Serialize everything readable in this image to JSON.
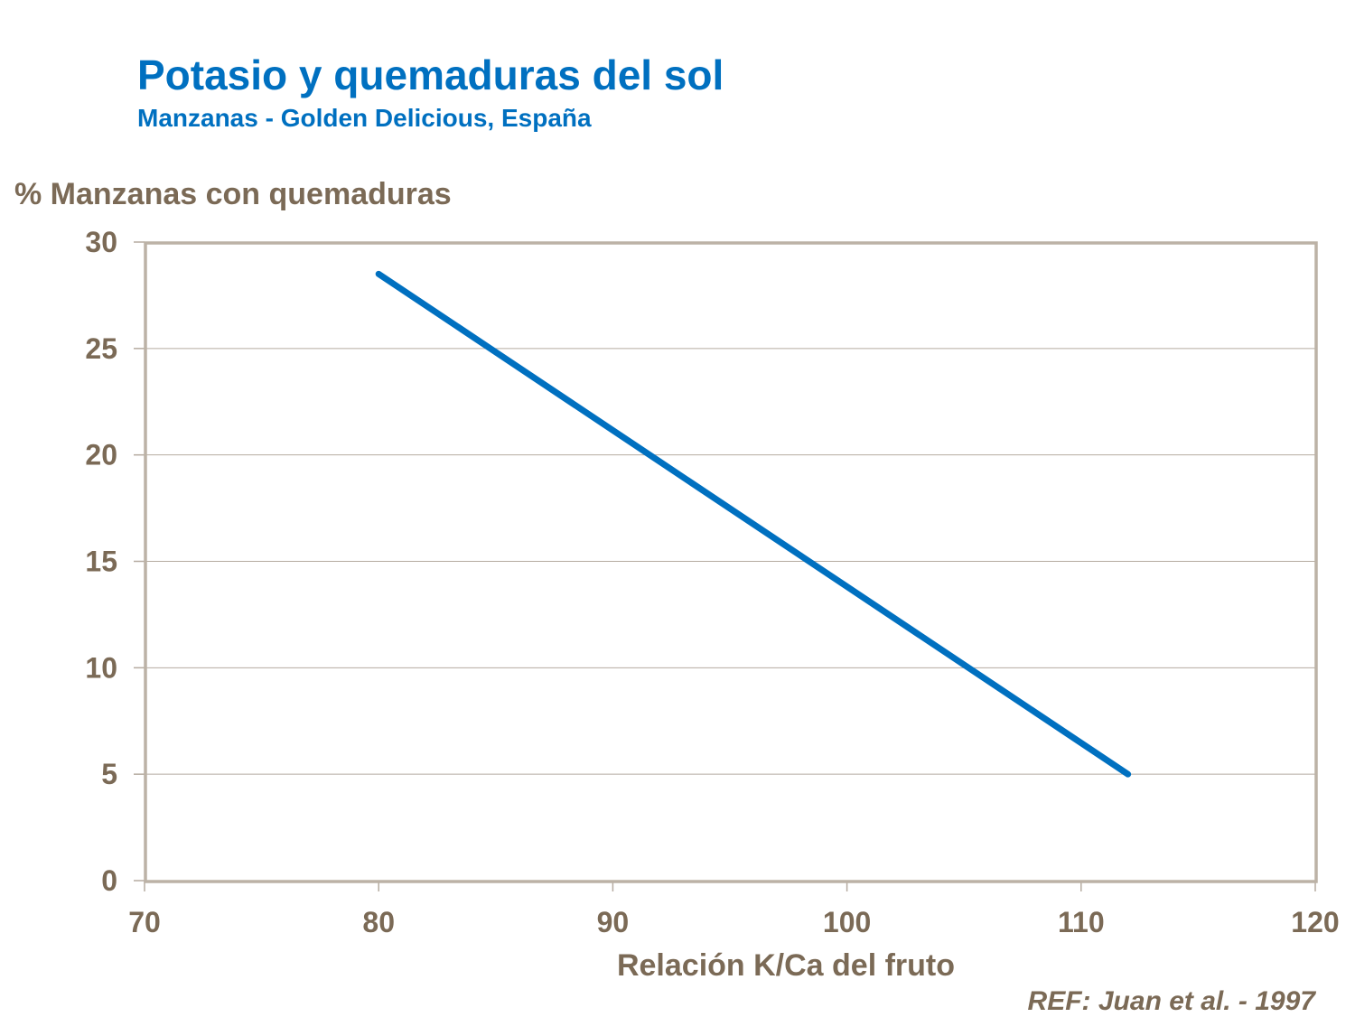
{
  "chart_data": {
    "type": "line",
    "title": "Potasio y quemaduras del sol",
    "subtitle": "Manzanas - Golden Delicious, España",
    "xlabel": "Relación K/Ca del fruto",
    "ylabel": "% Manzanas con quemaduras",
    "xlim": [
      70,
      120
    ],
    "ylim": [
      0,
      30
    ],
    "xticks": [
      70,
      80,
      90,
      100,
      110,
      120
    ],
    "yticks": [
      0,
      5,
      10,
      15,
      20,
      25,
      30
    ],
    "grid": "horizontal",
    "series": [
      {
        "x": [
          80,
          112
        ],
        "y": [
          28.5,
          5
        ],
        "color": "#0070c0"
      }
    ],
    "annotation": "REF: Juan et al. - 1997"
  }
}
